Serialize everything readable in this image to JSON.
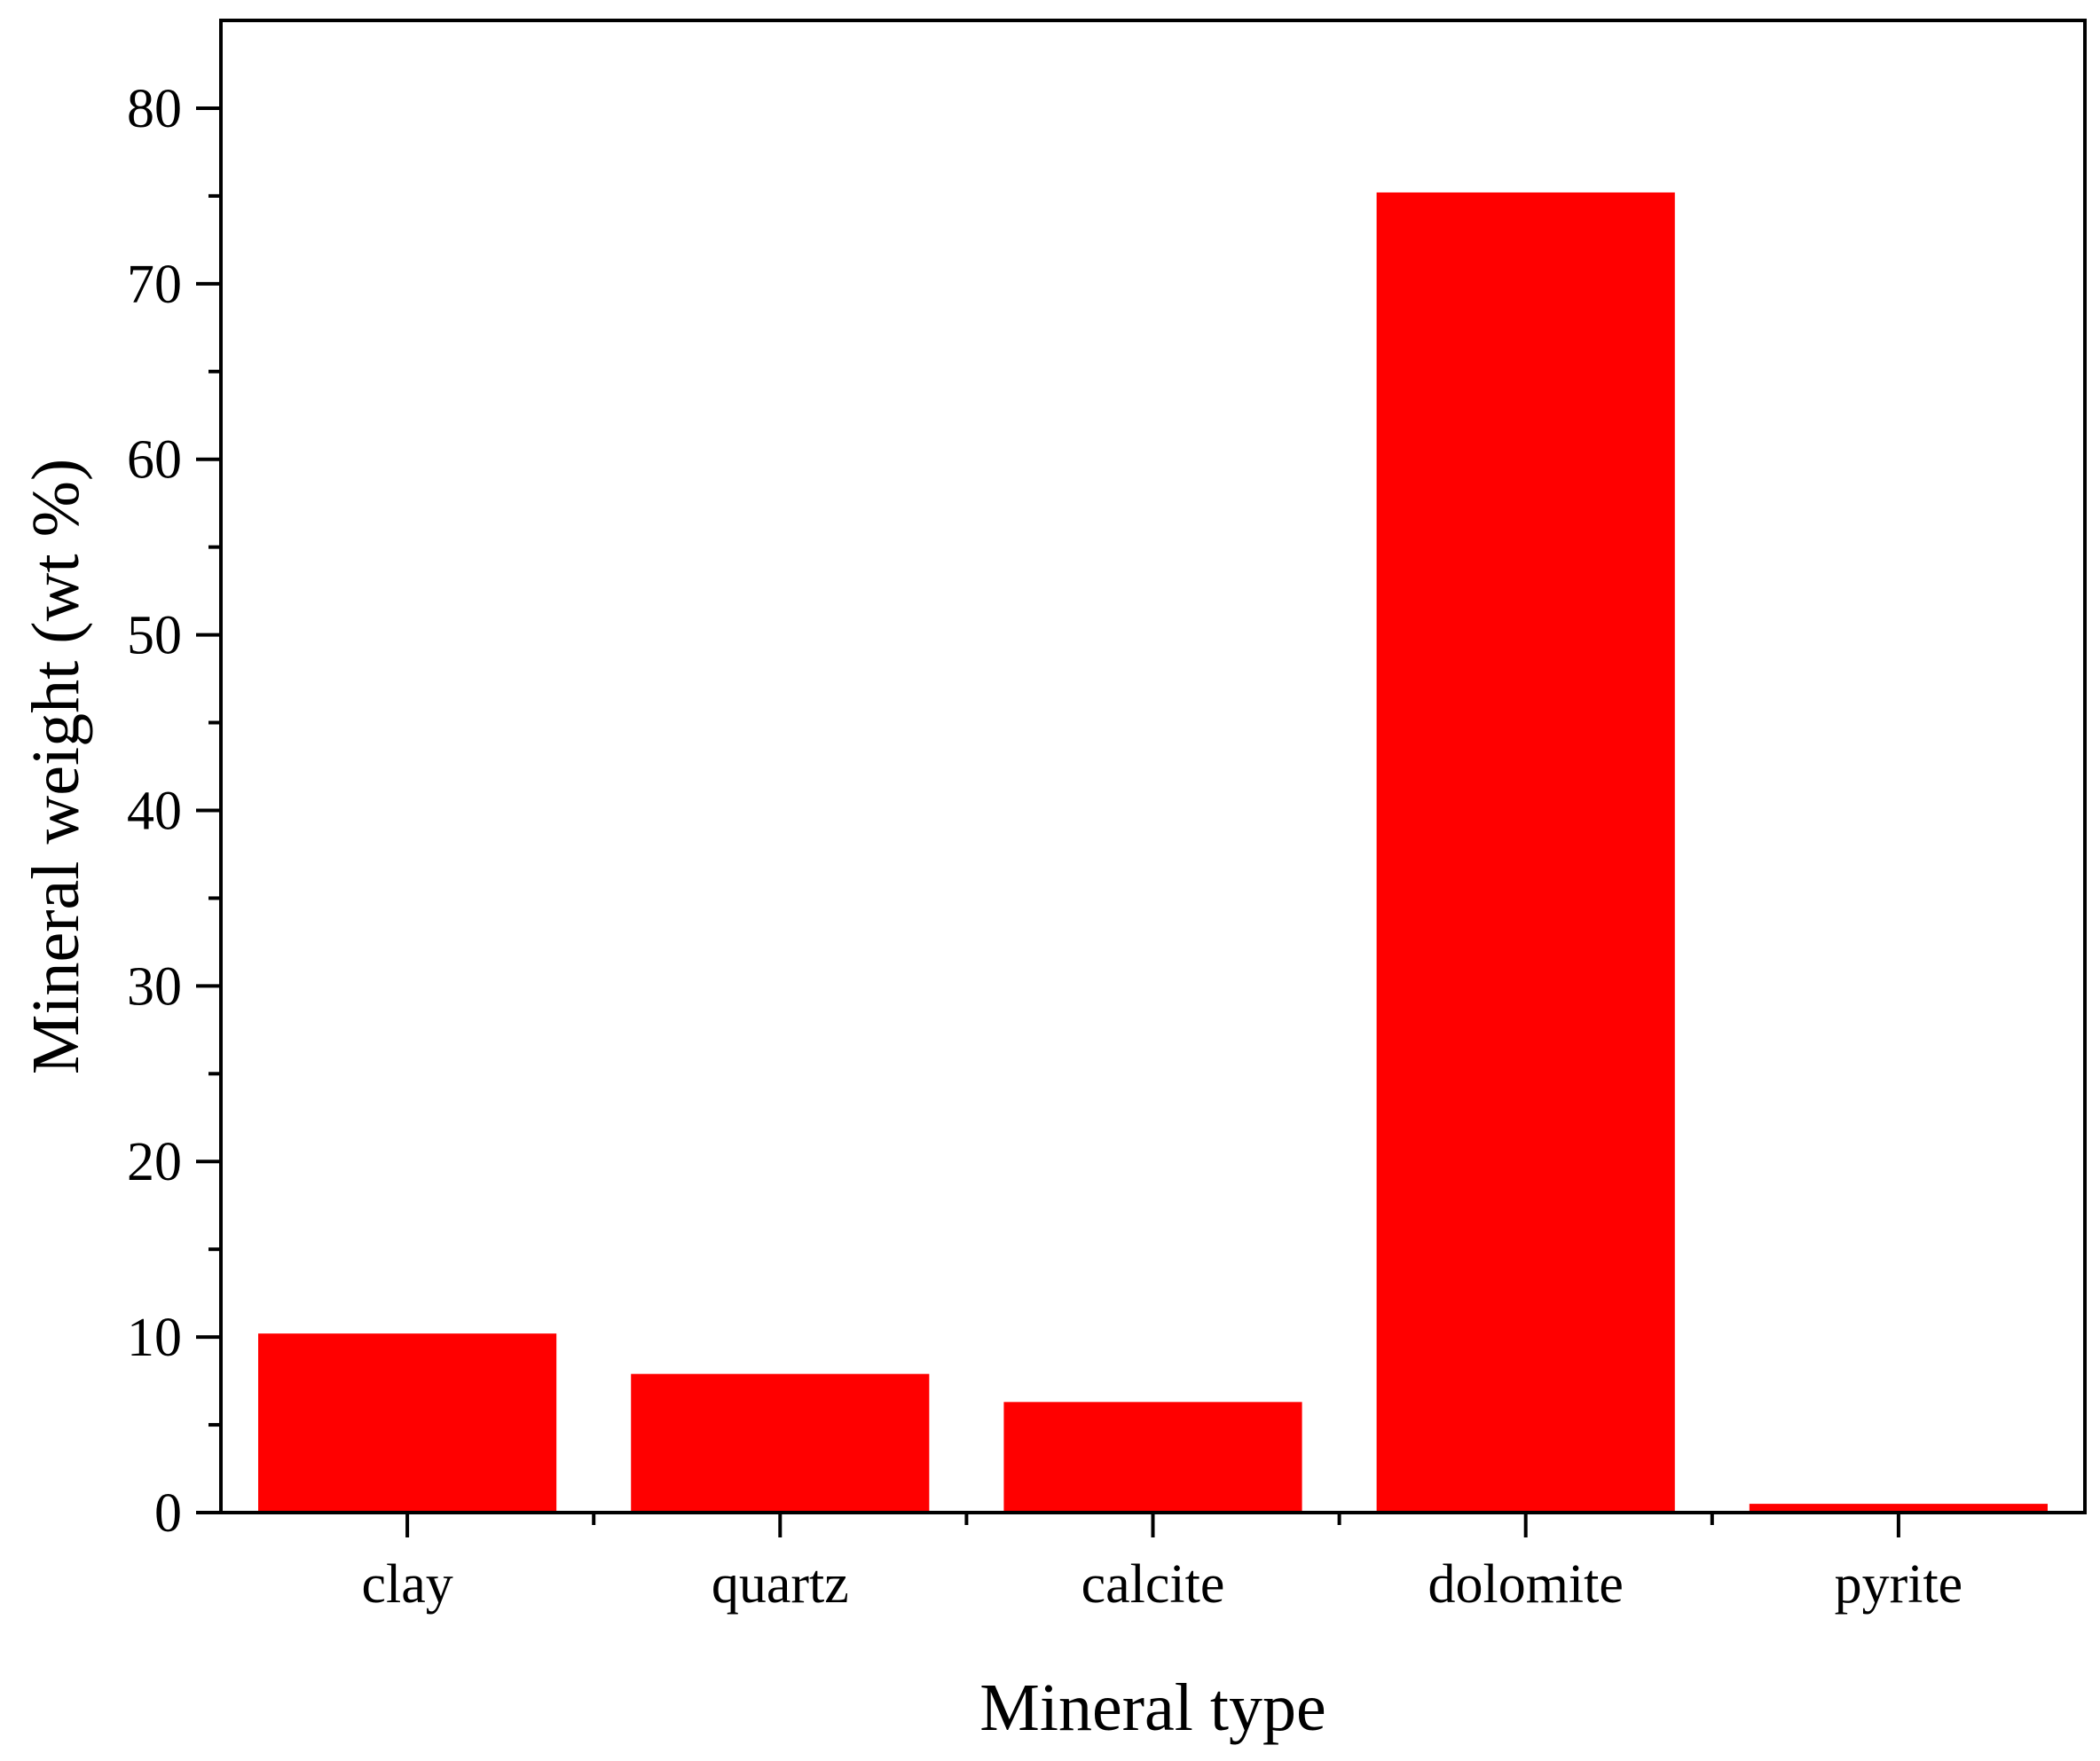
{
  "chart_data": {
    "type": "bar",
    "title": "",
    "xlabel": "Mineral type",
    "ylabel": "Mineral weight (wt %)",
    "categories": [
      "clay",
      "quartz",
      "calcite",
      "dolomite",
      "pyrite"
    ],
    "values": [
      10.2,
      7.9,
      6.3,
      75.2,
      0.5
    ],
    "ylim": [
      0,
      85
    ],
    "yticks": [
      0,
      10,
      20,
      30,
      40,
      50,
      60,
      70,
      80
    ],
    "ytick_labels": [
      "0",
      "10",
      "20",
      "30",
      "40",
      "50",
      "60",
      "70",
      "80"
    ],
    "y_minor_step": 5,
    "grid": false,
    "legend": "none",
    "bar_color": "#ff0000",
    "axis_color": "#000000"
  }
}
